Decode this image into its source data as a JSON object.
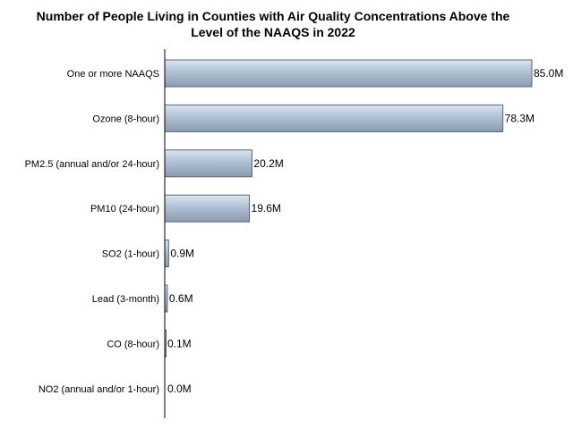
{
  "chart_data": {
    "type": "bar",
    "orientation": "horizontal",
    "title_lines": [
      "Number of People Living in Counties with Air Quality Concentrations Above the",
      "Level of the NAAQS in 2022"
    ],
    "categories": [
      "One or more NAAQS",
      "Ozone (8-hour)",
      "PM2.5 (annual and/or 24-hour)",
      "PM10 (24-hour)",
      "SO2 (1-hour)",
      "Lead (3-month)",
      "CO (8-hour)",
      "NO2 (annual and/or 1-hour)"
    ],
    "values": [
      85.0,
      78.3,
      20.2,
      19.6,
      0.9,
      0.6,
      0.1,
      0.0
    ],
    "value_labels": [
      "85.0M",
      "78.3M",
      "20.2M",
      "19.6M",
      "0.9M",
      "0.6M",
      "0.1M",
      "0.0M"
    ],
    "xlim": [
      0,
      85.0
    ],
    "grid": false,
    "legend": "none",
    "colors": {
      "bar_light": "#dce6f2",
      "bar_mid": "#b8c7da",
      "bar_dark": "#8a9bb0",
      "bar_stroke": "#5a6470",
      "axis": "#000000"
    }
  }
}
